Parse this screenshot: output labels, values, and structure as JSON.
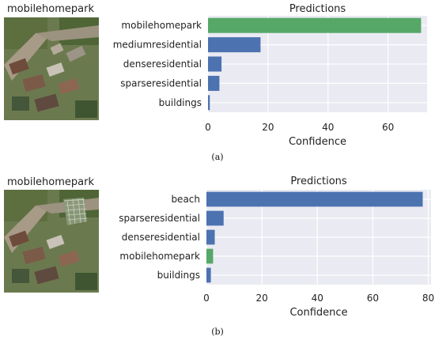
{
  "panels": [
    {
      "image_title": "mobilehomepark",
      "sub_label": "(a)",
      "image_icon": "aerial-photo-icon"
    },
    {
      "image_title": "mobilehomepark",
      "sub_label": "(b)",
      "image_icon": "aerial-photo-icon"
    }
  ],
  "colors": {
    "plot_bg": "#eaeaf2",
    "grid": "#ffffff",
    "bar": "#4c72b0",
    "highlight": "#55a868",
    "text": "#222222"
  },
  "chart_data": [
    {
      "type": "bar",
      "orientation": "horizontal",
      "title": "Predictions",
      "xlabel": "Confidence",
      "ylabel": "",
      "categories": [
        "mobilehomepark",
        "mediumresidential",
        "denseresidential",
        "sparseresidential",
        "buildings"
      ],
      "values": [
        71,
        17.5,
        4.5,
        3.8,
        0.6
      ],
      "highlight_category": "mobilehomepark",
      "xlim": [
        0,
        73
      ],
      "xticks": [
        0,
        20,
        40,
        60
      ],
      "grid": true
    },
    {
      "type": "bar",
      "orientation": "horizontal",
      "title": "Predictions",
      "xlabel": "Confidence",
      "ylabel": "",
      "categories": [
        "beach",
        "sparseresidential",
        "denseresidential",
        "mobilehomepark",
        "buildings"
      ],
      "values": [
        78,
        6.2,
        3,
        2.4,
        1.6
      ],
      "highlight_category": "mobilehomepark",
      "xlim": [
        0,
        81
      ],
      "xticks": [
        0,
        20,
        40,
        60,
        80
      ],
      "grid": true
    }
  ]
}
